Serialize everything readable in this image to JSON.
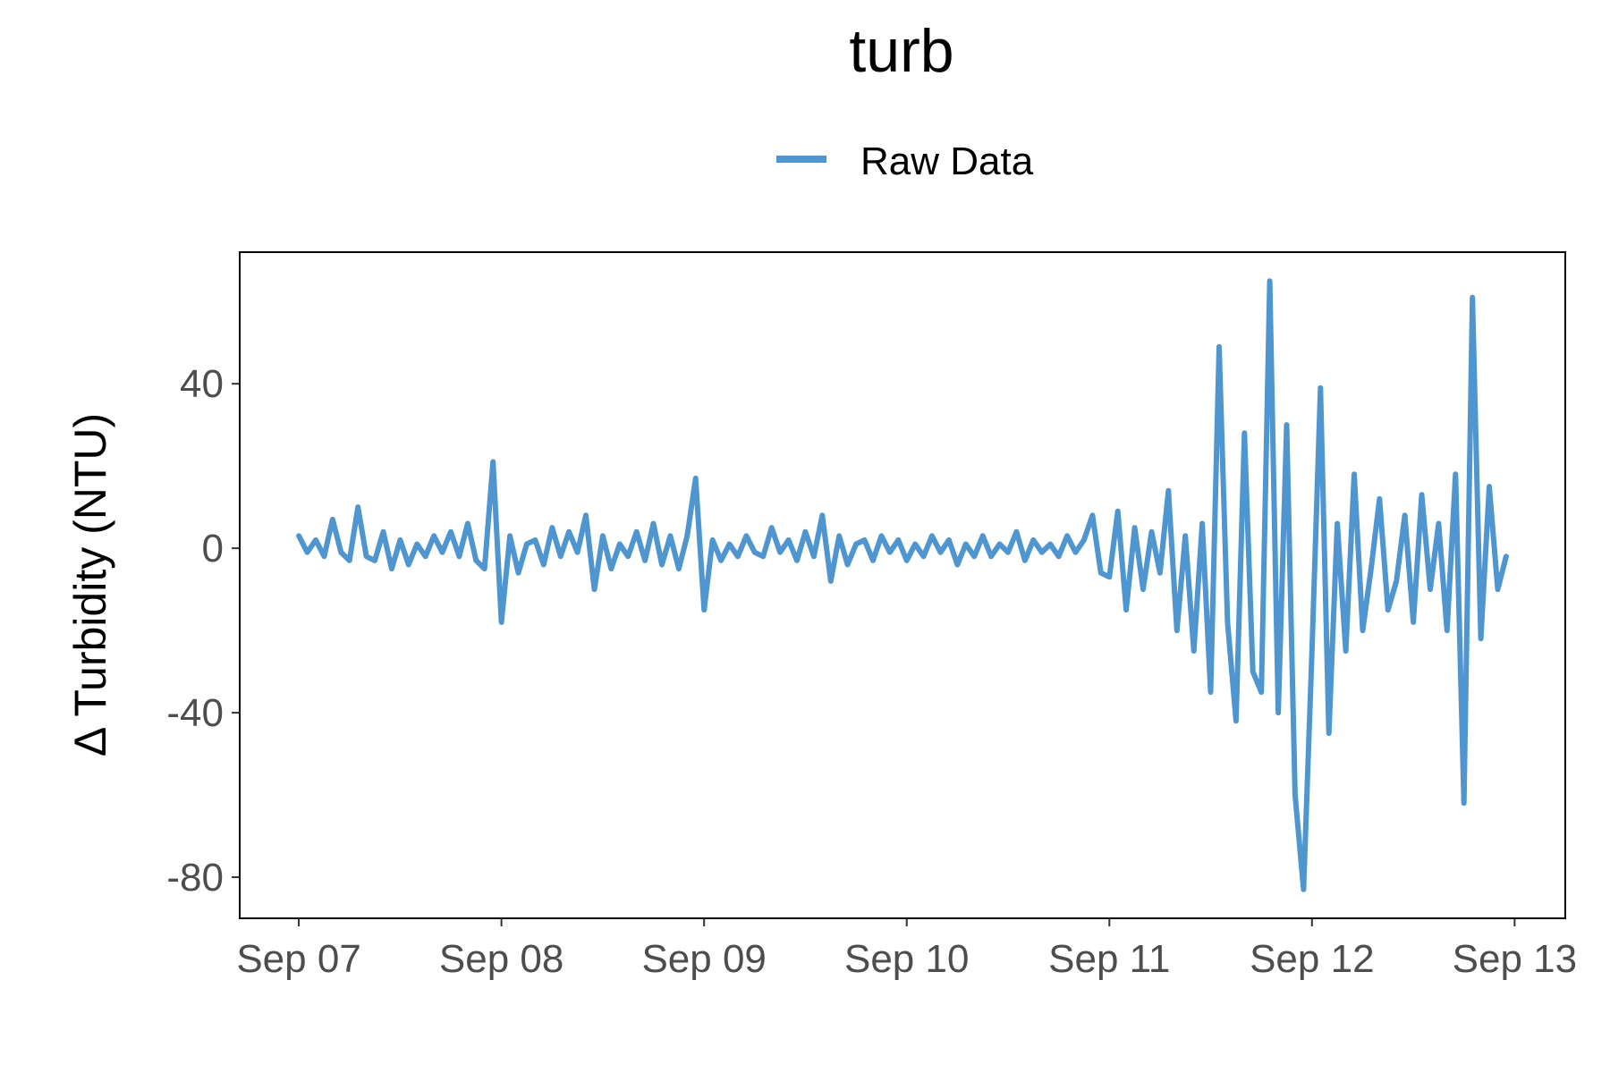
{
  "chart_data": {
    "type": "line",
    "title": "turb",
    "xlabel": "",
    "ylabel": "Δ Turbidity (NTU)",
    "x_ticks": [
      "Sep 07",
      "Sep 08",
      "Sep 09",
      "Sep 10",
      "Sep 11",
      "Sep 12",
      "Sep 13"
    ],
    "y_ticks": [
      40,
      0,
      -40,
      -80
    ],
    "y_tick_labels": [
      "40",
      "0",
      "-40",
      "-80"
    ],
    "xlim": [
      "2023-09-06 17:00",
      "2023-09-13 06:00"
    ],
    "ylim": [
      -90,
      72
    ],
    "grid": false,
    "legend_position": "top",
    "legend": [
      "Raw Data"
    ],
    "series": [
      {
        "name": "Raw Data",
        "color": "#4f95d0",
        "x": [
          "2023-09-07 00:00",
          "2023-09-07 01:00",
          "2023-09-07 02:00",
          "2023-09-07 03:00",
          "2023-09-07 04:00",
          "2023-09-07 05:00",
          "2023-09-07 06:00",
          "2023-09-07 07:00",
          "2023-09-07 08:00",
          "2023-09-07 09:00",
          "2023-09-07 10:00",
          "2023-09-07 11:00",
          "2023-09-07 12:00",
          "2023-09-07 13:00",
          "2023-09-07 14:00",
          "2023-09-07 15:00",
          "2023-09-07 16:00",
          "2023-09-07 17:00",
          "2023-09-07 18:00",
          "2023-09-07 19:00",
          "2023-09-07 20:00",
          "2023-09-07 21:00",
          "2023-09-07 22:00",
          "2023-09-07 23:00",
          "2023-09-08 00:00",
          "2023-09-08 01:00",
          "2023-09-08 02:00",
          "2023-09-08 03:00",
          "2023-09-08 04:00",
          "2023-09-08 05:00",
          "2023-09-08 06:00",
          "2023-09-08 07:00",
          "2023-09-08 08:00",
          "2023-09-08 09:00",
          "2023-09-08 10:00",
          "2023-09-08 11:00",
          "2023-09-08 12:00",
          "2023-09-08 13:00",
          "2023-09-08 14:00",
          "2023-09-08 15:00",
          "2023-09-08 16:00",
          "2023-09-08 17:00",
          "2023-09-08 18:00",
          "2023-09-08 19:00",
          "2023-09-08 20:00",
          "2023-09-08 21:00",
          "2023-09-08 22:00",
          "2023-09-08 23:00",
          "2023-09-09 00:00",
          "2023-09-09 01:00",
          "2023-09-09 02:00",
          "2023-09-09 03:00",
          "2023-09-09 04:00",
          "2023-09-09 05:00",
          "2023-09-09 06:00",
          "2023-09-09 07:00",
          "2023-09-09 08:00",
          "2023-09-09 09:00",
          "2023-09-09 10:00",
          "2023-09-09 11:00",
          "2023-09-09 12:00",
          "2023-09-09 13:00",
          "2023-09-09 14:00",
          "2023-09-09 15:00",
          "2023-09-09 16:00",
          "2023-09-09 17:00",
          "2023-09-09 18:00",
          "2023-09-09 19:00",
          "2023-09-09 20:00",
          "2023-09-09 21:00",
          "2023-09-09 22:00",
          "2023-09-09 23:00",
          "2023-09-10 00:00",
          "2023-09-10 01:00",
          "2023-09-10 02:00",
          "2023-09-10 03:00",
          "2023-09-10 04:00",
          "2023-09-10 05:00",
          "2023-09-10 06:00",
          "2023-09-10 07:00",
          "2023-09-10 08:00",
          "2023-09-10 09:00",
          "2023-09-10 10:00",
          "2023-09-10 11:00",
          "2023-09-10 12:00",
          "2023-09-10 13:00",
          "2023-09-10 14:00",
          "2023-09-10 15:00",
          "2023-09-10 16:00",
          "2023-09-10 17:00",
          "2023-09-10 18:00",
          "2023-09-10 19:00",
          "2023-09-10 20:00",
          "2023-09-10 21:00",
          "2023-09-10 22:00",
          "2023-09-10 23:00",
          "2023-09-11 00:00",
          "2023-09-11 01:00",
          "2023-09-11 02:00",
          "2023-09-11 03:00",
          "2023-09-11 04:00",
          "2023-09-11 05:00",
          "2023-09-11 06:00",
          "2023-09-11 07:00",
          "2023-09-11 08:00",
          "2023-09-11 09:00",
          "2023-09-11 10:00",
          "2023-09-11 11:00",
          "2023-09-11 12:00",
          "2023-09-11 13:00",
          "2023-09-11 14:00",
          "2023-09-11 15:00",
          "2023-09-11 16:00",
          "2023-09-11 17:00",
          "2023-09-11 18:00",
          "2023-09-11 19:00",
          "2023-09-11 20:00",
          "2023-09-11 21:00",
          "2023-09-11 22:00",
          "2023-09-11 23:00",
          "2023-09-12 00:00",
          "2023-09-12 01:00",
          "2023-09-12 02:00",
          "2023-09-12 03:00",
          "2023-09-12 04:00",
          "2023-09-12 05:00",
          "2023-09-12 06:00",
          "2023-09-12 07:00",
          "2023-09-12 08:00",
          "2023-09-12 09:00",
          "2023-09-12 10:00",
          "2023-09-12 11:00",
          "2023-09-12 12:00",
          "2023-09-12 13:00",
          "2023-09-12 14:00",
          "2023-09-12 15:00",
          "2023-09-12 16:00",
          "2023-09-12 17:00",
          "2023-09-12 18:00",
          "2023-09-12 19:00",
          "2023-09-12 20:00",
          "2023-09-12 21:00",
          "2023-09-12 22:00",
          "2023-09-12 23:00"
        ],
        "y": [
          3,
          -1,
          2,
          -2,
          7,
          -1,
          -3,
          10,
          -2,
          -3,
          4,
          -5,
          2,
          -4,
          1,
          -2,
          3,
          -1,
          4,
          -2,
          6,
          -3,
          -5,
          21,
          -18,
          3,
          -6,
          1,
          2,
          -4,
          5,
          -2,
          4,
          -1,
          8,
          -10,
          3,
          -5,
          1,
          -2,
          4,
          -3,
          6,
          -4,
          3,
          -5,
          3,
          17,
          -15,
          2,
          -3,
          1,
          -2,
          3,
          -1,
          -2,
          5,
          -1,
          2,
          -3,
          4,
          -2,
          8,
          -8,
          3,
          -4,
          1,
          2,
          -3,
          3,
          -1,
          2,
          -3,
          1,
          -2,
          3,
          -1,
          2,
          -4,
          1,
          -2,
          3,
          -2,
          1,
          -1,
          4,
          -3,
          2,
          -1,
          1,
          -2,
          3,
          -1,
          2,
          8,
          -6,
          -7,
          9,
          -15,
          5,
          -10,
          4,
          -6,
          14,
          -20,
          3,
          -25,
          6,
          -35,
          49,
          -18,
          -42,
          28,
          -30,
          -35,
          65,
          -40,
          30,
          -60,
          -83,
          -25,
          39,
          -45,
          6,
          -25,
          18,
          -20,
          -5,
          12,
          -15,
          -8,
          8,
          -18,
          13,
          -10,
          6,
          -20,
          18,
          -62,
          61,
          -22,
          15,
          -10,
          -2
        ]
      }
    ]
  }
}
